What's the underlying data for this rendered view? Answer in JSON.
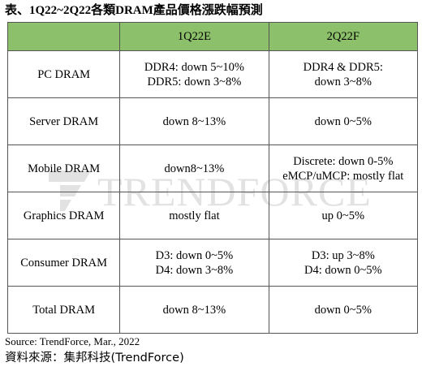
{
  "title": "表、1Q22~2Q22各類DRAM產品價格漲跌幅預測",
  "watermark": {
    "text": "TRENDFORCE"
  },
  "table": {
    "headers": [
      "",
      "1Q22E",
      "2Q22F"
    ],
    "rows": [
      {
        "label": "PC DRAM",
        "q1": [
          "DDR4: down 5~10%",
          "DDR5: down 3~8%"
        ],
        "q2": [
          "DDR4 & DDR5:",
          "down 3~8%"
        ]
      },
      {
        "label": "Server DRAM",
        "q1": [
          "down 8~13%"
        ],
        "q2": [
          "down 0~5%"
        ]
      },
      {
        "label": "Mobile DRAM",
        "q1": [
          "down8~13%"
        ],
        "q2": [
          "Discrete: down 0-5%",
          "eMCP/uMCP: mostly flat"
        ]
      },
      {
        "label": "Graphics DRAM",
        "q1": [
          "mostly flat"
        ],
        "q2": [
          "up 0~5%"
        ]
      },
      {
        "label": "Consumer DRAM",
        "q1": [
          "D3: down 0~5%",
          "D4: down 3~8%"
        ],
        "q2": [
          "D3: up 3~8%",
          "D4: down 0~5%"
        ]
      },
      {
        "label": "Total DRAM",
        "q1": [
          "down 8~13%"
        ],
        "q2": [
          "down 0~5%"
        ]
      }
    ]
  },
  "source": "Source: TrendForce, Mar., 2022",
  "source_cn": "資料來源：集邦科技(TrendForce)",
  "colors": {
    "header_bg": "#8cc06a",
    "border": "#555555"
  }
}
